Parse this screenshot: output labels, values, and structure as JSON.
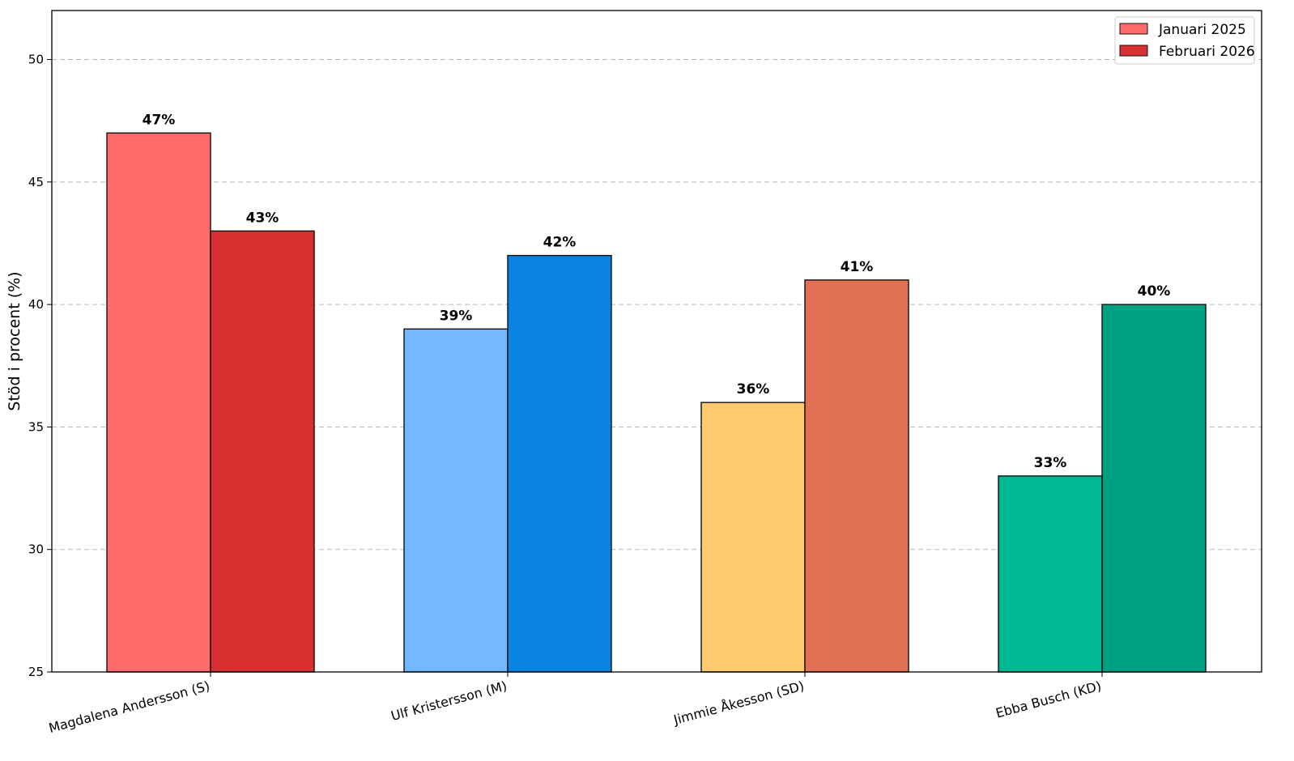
{
  "chart_data": {
    "type": "bar",
    "title": "",
    "xlabel": "",
    "ylabel": "Stöd i procent (%)",
    "ylim": [
      25,
      52
    ],
    "yticks": [
      25,
      30,
      35,
      40,
      45,
      50
    ],
    "grid": "y-dashed",
    "legend_position": "top-right",
    "categories": [
      "Magdalena Andersson (S)",
      "Ulf Kristersson (M)",
      "Jimmie Åkesson (SD)",
      "Ebba Busch (KD)"
    ],
    "series": [
      {
        "name": "Januari 2025",
        "legend_color": "#ff6b6b",
        "values": [
          47,
          39,
          36,
          33
        ],
        "labels": [
          "47%",
          "39%",
          "36%",
          "33%"
        ],
        "colors": [
          "#ff6b6b",
          "#74b9ff",
          "#fdcb6e",
          "#00b894"
        ]
      },
      {
        "name": "Februari 2026",
        "legend_color": "#d63031",
        "values": [
          43,
          42,
          41,
          40
        ],
        "labels": [
          "43%",
          "42%",
          "41%",
          "40%"
        ],
        "colors": [
          "#d63031",
          "#0984e3",
          "#e17055",
          "#00a085"
        ]
      }
    ]
  }
}
